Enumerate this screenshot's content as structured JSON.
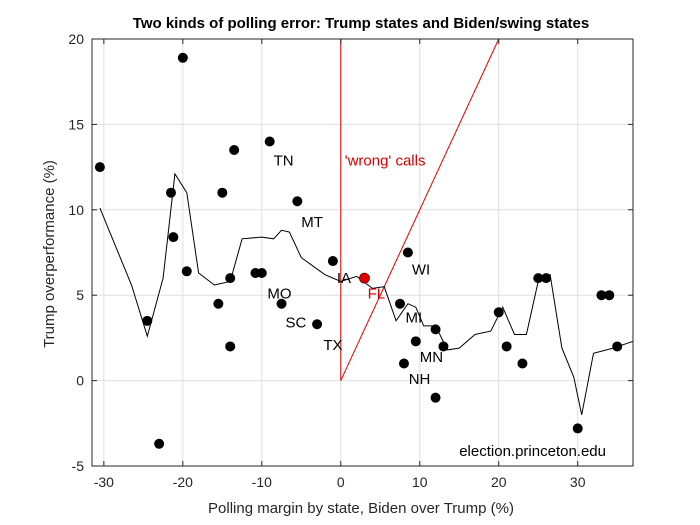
{
  "chart_data": {
    "type": "scatter",
    "title": "Two kinds of polling error: Trump states and Biden/swing states",
    "xlabel": "Polling margin by state, Biden over Trump (%)",
    "ylabel": "Trump overperformance (%)",
    "xlim": [
      -31.5,
      37
    ],
    "ylim": [
      -5,
      20
    ],
    "xticks": [
      -30,
      -20,
      -10,
      0,
      10,
      20,
      30
    ],
    "yticks": [
      -5,
      0,
      5,
      10,
      15,
      20
    ],
    "grid": true,
    "points": [
      {
        "x": -30.5,
        "y": 12.5
      },
      {
        "x": -20,
        "y": 18.9
      },
      {
        "x": -21.5,
        "y": 11
      },
      {
        "x": -21.2,
        "y": 8.4
      },
      {
        "x": -19.5,
        "y": 6.4
      },
      {
        "x": -24.5,
        "y": 3.5
      },
      {
        "x": -23,
        "y": -3.7
      },
      {
        "x": -15,
        "y": 11
      },
      {
        "x": -13.5,
        "y": 13.5
      },
      {
        "x": -14,
        "y": 6
      },
      {
        "x": -15.5,
        "y": 4.5
      },
      {
        "x": -14,
        "y": 2
      },
      {
        "x": -9,
        "y": 14
      },
      {
        "x": -10.8,
        "y": 6.3
      },
      {
        "x": -10,
        "y": 6.3
      },
      {
        "x": -5.5,
        "y": 10.5
      },
      {
        "x": -7.5,
        "y": 4.5
      },
      {
        "x": -3,
        "y": 3.3
      },
      {
        "x": -1,
        "y": 7
      },
      {
        "x": 7.5,
        "y": 4.5
      },
      {
        "x": 8.5,
        "y": 7.5
      },
      {
        "x": 9.5,
        "y": 2.3
      },
      {
        "x": 8,
        "y": 1
      },
      {
        "x": 12,
        "y": 3
      },
      {
        "x": 12,
        "y": -1
      },
      {
        "x": 13,
        "y": 2
      },
      {
        "x": 20,
        "y": 4
      },
      {
        "x": 21,
        "y": 2
      },
      {
        "x": 23,
        "y": 1
      },
      {
        "x": 25,
        "y": 6
      },
      {
        "x": 26,
        "y": 6
      },
      {
        "x": 30,
        "y": -2.8
      },
      {
        "x": 33,
        "y": 5
      },
      {
        "x": 34,
        "y": 5
      },
      {
        "x": 35,
        "y": 2
      }
    ],
    "highlight_point": {
      "label": "FL",
      "x": 3,
      "y": 6,
      "color": "#e00000"
    },
    "trend_line": [
      [
        -30.5,
        10.1
      ],
      [
        -26.5,
        5.6
      ],
      [
        -24.5,
        2.6
      ],
      [
        -22.5,
        6
      ],
      [
        -21,
        12.1
      ],
      [
        -19.5,
        11
      ],
      [
        -18,
        6.3
      ],
      [
        -16,
        5.6
      ],
      [
        -14,
        5.8
      ],
      [
        -12.5,
        8.3
      ],
      [
        -10,
        8.4
      ],
      [
        -8.5,
        8.3
      ],
      [
        -7.5,
        8.8
      ],
      [
        -6.5,
        8.7
      ],
      [
        -5,
        7.2
      ],
      [
        -3.5,
        6.7
      ],
      [
        -2,
        6.2
      ],
      [
        0,
        5.8
      ],
      [
        2,
        6.1
      ],
      [
        4,
        5.4
      ],
      [
        5.5,
        5.5
      ],
      [
        7,
        3.5
      ],
      [
        8.5,
        4.5
      ],
      [
        9.5,
        4.3
      ],
      [
        10.5,
        3.2
      ],
      [
        12,
        3.2
      ],
      [
        13.5,
        1.8
      ],
      [
        15,
        1.9
      ],
      [
        17,
        2.7
      ],
      [
        19,
        2.9
      ],
      [
        20.5,
        4.3
      ],
      [
        22,
        2.7
      ],
      [
        23.5,
        2.7
      ],
      [
        25,
        5.8
      ],
      [
        26.5,
        6.2
      ],
      [
        28,
        1.9
      ],
      [
        29.5,
        0.2
      ],
      [
        30.5,
        -2
      ],
      [
        32,
        1.6
      ],
      [
        34.5,
        1.9
      ],
      [
        37,
        2.3
      ]
    ],
    "reference_lines": [
      {
        "from": [
          0,
          0
        ],
        "to": [
          0,
          20
        ],
        "color": "#e00000"
      },
      {
        "from": [
          0,
          0
        ],
        "to": [
          20,
          20
        ],
        "color": "#e00000"
      }
    ],
    "annotations": [
      {
        "text": "TN",
        "x": -8.5,
        "y": 12.6,
        "color": "#000000"
      },
      {
        "text": "MT",
        "x": -5,
        "y": 9,
        "color": "#000000"
      },
      {
        "text": "MO",
        "x": -9.3,
        "y": 4.8,
        "color": "#000000"
      },
      {
        "text": "SC",
        "x": -7,
        "y": 3.1,
        "color": "#000000"
      },
      {
        "text": "TX",
        "x": -2.2,
        "y": 1.8,
        "color": "#000000"
      },
      {
        "text": "IA",
        "x": -0.5,
        "y": 5.7,
        "color": "#000000"
      },
      {
        "text": "FL",
        "x": 3.4,
        "y": 4.8,
        "color": "#e00000"
      },
      {
        "text": "WI",
        "x": 9,
        "y": 6.2,
        "color": "#000000"
      },
      {
        "text": "MI",
        "x": 8.2,
        "y": 3.4,
        "color": "#000000"
      },
      {
        "text": "MN",
        "x": 10,
        "y": 1.1,
        "color": "#000000"
      },
      {
        "text": "NH",
        "x": 8.6,
        "y": -0.2,
        "color": "#000000"
      },
      {
        "text": "'wrong' calls",
        "x": 0.5,
        "y": 12.6,
        "color": "#e00000"
      }
    ],
    "credit": "election.princeton.edu",
    "credit_position": "bottom-right"
  }
}
